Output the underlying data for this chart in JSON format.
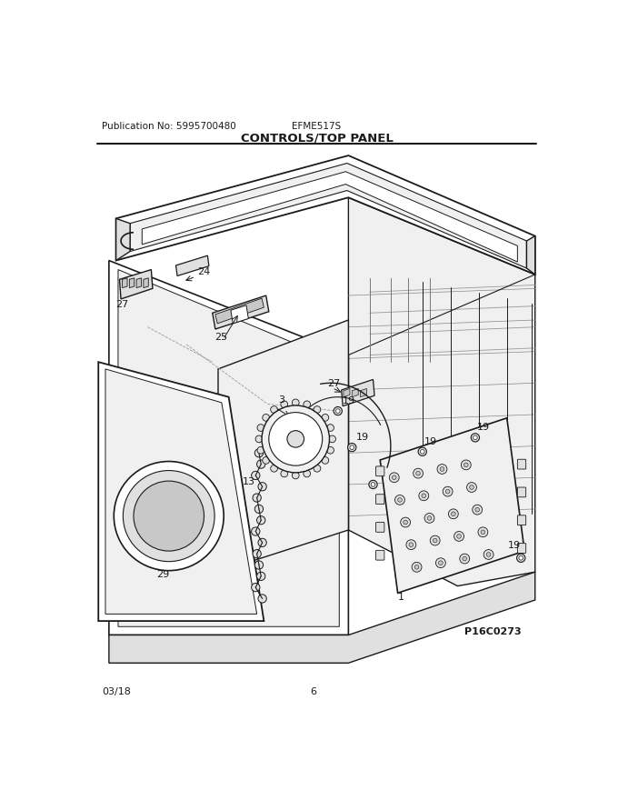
{
  "pub_no": "Publication No: 5995700480",
  "model": "EFME517S",
  "title": "CONTROLS/TOP PANEL",
  "date": "03/18",
  "page": "6",
  "ref_code": "P16C0273",
  "bg_color": "#ffffff",
  "lc": "#1a1a1a",
  "fig_width": 6.8,
  "fig_height": 8.8,
  "dpi": 100
}
